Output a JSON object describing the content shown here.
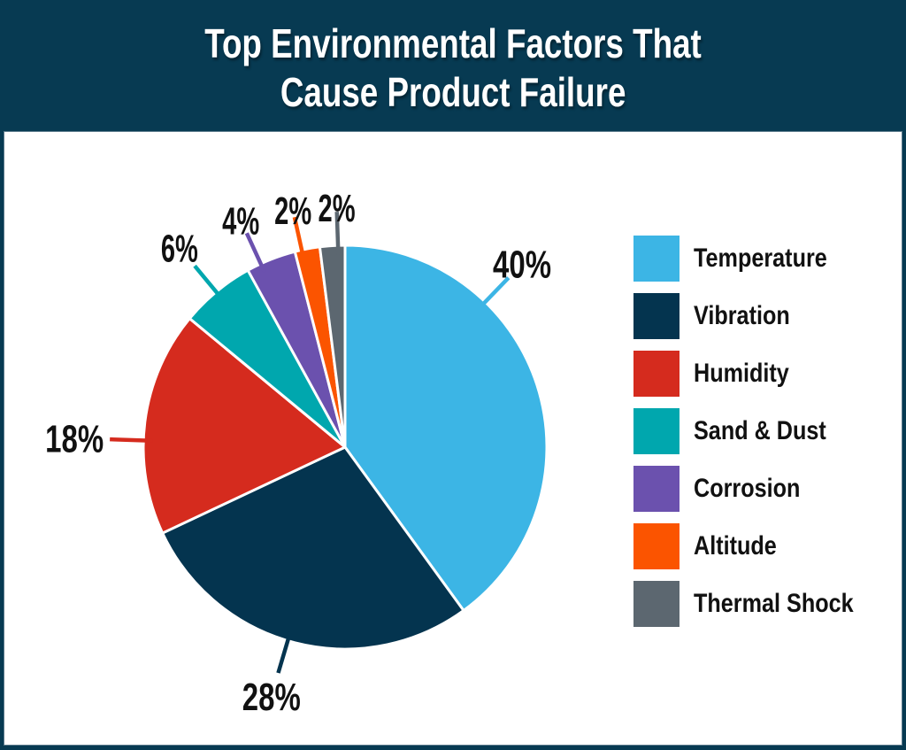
{
  "title": {
    "line1": "Top Environmental Factors That",
    "line2": "Cause Product Failure"
  },
  "chart_data": {
    "type": "pie",
    "title": "Top Environmental Factors That Cause Product Failure",
    "unit": "percent",
    "direction": "clockwise",
    "start_angle_deg": 0,
    "legend_position": "right",
    "slices": [
      {
        "label": "Temperature",
        "value": 40,
        "pct_label": "40%",
        "color": "#3CB5E5",
        "label_angle_deg": 44,
        "label_dist": 288
      },
      {
        "label": "Vibration",
        "value": 28,
        "pct_label": "28%",
        "color": "#04344F",
        "label_angle_deg": 196.5,
        "label_dist": 293
      },
      {
        "label": "Humidity",
        "value": 18,
        "pct_label": "18%",
        "color": "#D52B1E",
        "label_angle_deg": 271.9,
        "label_dist": 306
      },
      {
        "label": "Sand & Dust",
        "value": 6,
        "pct_label": "6%",
        "color": "#00A7AE",
        "label_angle_deg": 320.3,
        "label_dist": 293
      },
      {
        "label": "Corrosion",
        "value": 4,
        "pct_label": "4%",
        "color": "#6B51AE",
        "label_angle_deg": 335.3,
        "label_dist": 282
      },
      {
        "label": "Altitude",
        "value": 2,
        "pct_label": "2%",
        "color": "#FB5400",
        "label_angle_deg": 347.6,
        "label_dist": 274
      },
      {
        "label": "Thermal Shock",
        "value": 2,
        "pct_label": "2%",
        "color": "#5C6770",
        "label_angle_deg": 358,
        "label_dist": 271
      }
    ]
  },
  "colors": {
    "background": "#073A52",
    "card": "#FFFFFF",
    "title_text": "#FFFFFF",
    "label_text": "#111111",
    "slice_border": "#FFFFFF"
  }
}
